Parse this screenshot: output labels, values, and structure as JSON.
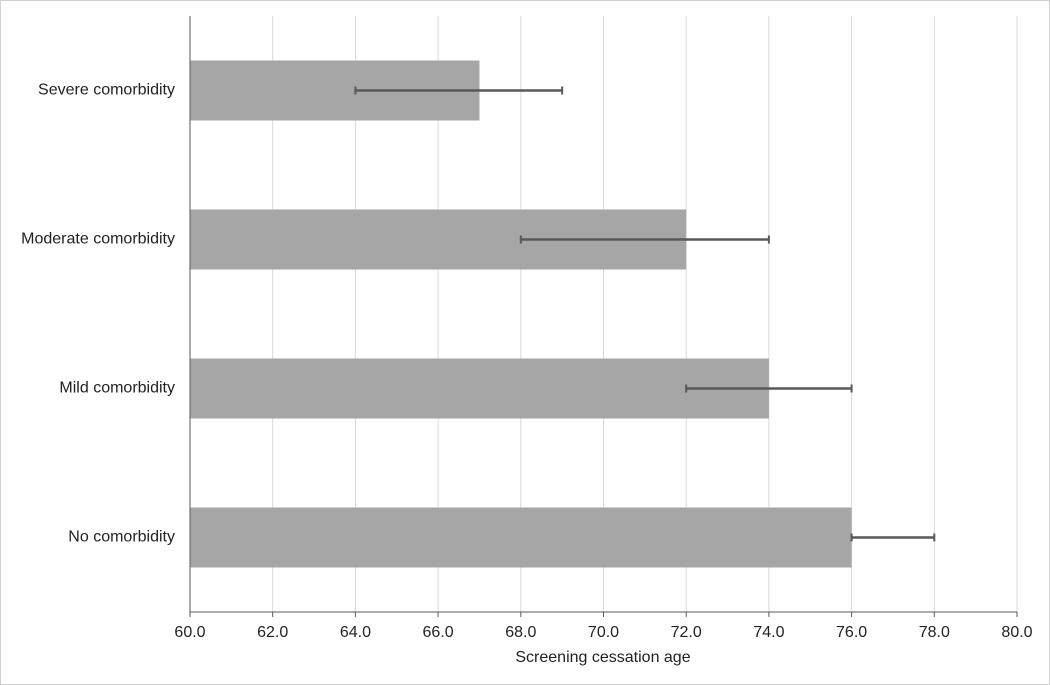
{
  "chart_data": {
    "type": "hbar",
    "x_label": "Screening cessation age",
    "categories": [
      "Severe comorbidity",
      "Moderate comorbidity",
      "Mild comorbidity",
      "No comorbidity"
    ],
    "values": [
      67,
      72,
      74,
      76
    ],
    "ci_low": [
      64,
      68,
      72,
      76
    ],
    "ci_high": [
      69,
      74,
      76,
      78
    ],
    "color": "#a6a6a6",
    "error_color": "#595959",
    "xlim": [
      60,
      80
    ],
    "xticks": [
      {
        "value": 60,
        "label": "60.0"
      },
      {
        "value": 62,
        "label": "62.0"
      },
      {
        "value": 64,
        "label": "64.0"
      },
      {
        "value": 66,
        "label": "66.0"
      },
      {
        "value": 68,
        "label": "68.0"
      },
      {
        "value": 70,
        "label": "70.0"
      },
      {
        "value": 72,
        "label": "72.0"
      },
      {
        "value": 74,
        "label": "74.0"
      },
      {
        "value": 76,
        "label": "76.0"
      },
      {
        "value": 78,
        "label": "78.0"
      },
      {
        "value": 80,
        "label": "80.0"
      }
    ],
    "grid": true
  }
}
